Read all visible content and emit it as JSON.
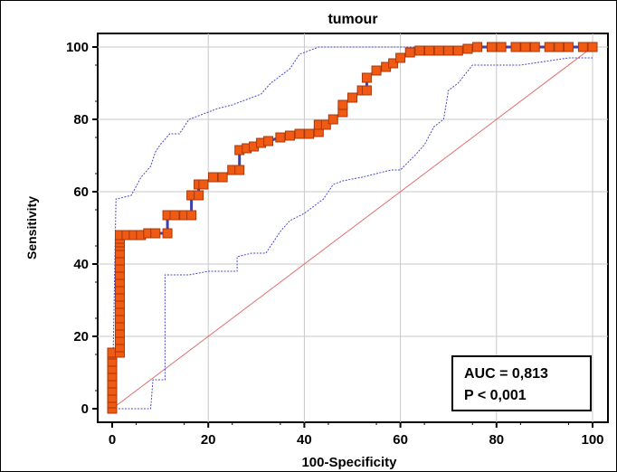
{
  "chart_data": {
    "type": "line",
    "title": "tumour",
    "xlabel": "100-Specificity",
    "ylabel": "Sensitivity",
    "xlim": [
      0,
      100
    ],
    "ylim": [
      0,
      100
    ],
    "x_ticks": [
      "0",
      "20",
      "40",
      "60",
      "80",
      "100"
    ],
    "y_ticks": [
      "0",
      "20",
      "40",
      "60",
      "80",
      "100"
    ],
    "grid": true,
    "annotation": {
      "auc": "AUC = 0,813",
      "p": "P < 0,001"
    },
    "colors": {
      "roc": "#3b3fb0",
      "marker_fill": "#f05a12",
      "marker_edge": "#a8380a",
      "ci": "#4a4acc",
      "reference": "#e07070",
      "grid": "#c8c8c8"
    },
    "series": [
      {
        "role": "roc",
        "x": [
          0,
          0,
          0,
          0,
          0,
          0,
          0,
          0,
          0,
          0,
          1.6,
          1.6,
          1.6,
          1.6,
          1.6,
          1.6,
          1.6,
          1.6,
          1.6,
          1.6,
          1.6,
          1.6,
          1.6,
          1.6,
          1.6,
          1.6,
          1.6,
          1.6,
          1.6,
          1.6,
          1.6,
          3,
          4.5,
          6,
          7.5,
          9,
          11.5,
          11.5,
          13,
          15,
          16.5,
          16.5,
          18,
          18,
          19,
          21,
          23,
          25,
          26.5,
          26.5,
          28,
          29.5,
          31,
          32.5,
          35,
          37,
          39,
          41,
          43,
          43,
          44.5,
          46,
          48,
          48,
          50,
          52,
          53,
          53,
          55,
          57,
          58.5,
          60,
          62,
          64,
          66,
          68,
          70,
          72,
          74,
          76,
          79,
          81,
          84,
          86,
          88,
          91,
          93,
          95,
          98,
          100
        ],
        "y": [
          0,
          1.5,
          3,
          5,
          7,
          9,
          11,
          13,
          15,
          15.5,
          15.5,
          17,
          19,
          21,
          23,
          25,
          27,
          29,
          31,
          33,
          35,
          37,
          39,
          41,
          43,
          45,
          46,
          47,
          48,
          48,
          48,
          48,
          48,
          48,
          48.5,
          48.5,
          48.5,
          53.5,
          53.5,
          53.5,
          53.5,
          59,
          59,
          62,
          62,
          64,
          64,
          66,
          66,
          71.5,
          72,
          72.5,
          73.5,
          74,
          75,
          75.5,
          76,
          76,
          76.5,
          78.5,
          78.5,
          80,
          82,
          84,
          86,
          88,
          88,
          91.5,
          93.5,
          94.5,
          95.5,
          97,
          98.5,
          99,
          99,
          99,
          99,
          99,
          99.5,
          100,
          100,
          100,
          100,
          100,
          100,
          100,
          100,
          100,
          100,
          100
        ]
      },
      {
        "role": "ci_upper",
        "x": [
          0,
          0.8,
          1,
          4,
          6,
          8,
          9,
          10,
          12,
          14,
          16,
          18,
          20,
          22,
          25,
          27,
          29,
          31,
          33,
          35,
          37,
          39,
          41,
          43,
          45,
          48,
          52,
          56,
          58,
          60,
          65,
          70,
          80,
          90,
          100
        ],
        "y": [
          0,
          58,
          58,
          59,
          64,
          67,
          71,
          73,
          76,
          76,
          80,
          81,
          82,
          83,
          84,
          85,
          86,
          87,
          90,
          92,
          94,
          98,
          99,
          100,
          100,
          100,
          100,
          100,
          100,
          100,
          100,
          100,
          100,
          100,
          100
        ]
      },
      {
        "role": "ci_lower",
        "x": [
          0,
          4,
          8,
          8.5,
          11,
          11,
          16,
          20,
          26,
          26,
          29,
          32,
          35,
          37,
          40,
          42,
          44,
          46,
          48,
          52,
          55,
          58,
          60,
          63,
          65,
          67,
          69,
          70,
          72,
          75,
          80,
          85,
          90,
          95,
          100
        ],
        "y": [
          0,
          0,
          0,
          8,
          8,
          37,
          37,
          38,
          38,
          42,
          43,
          43,
          49,
          52,
          54,
          56,
          58,
          62,
          63,
          64,
          65,
          66,
          66,
          70,
          73,
          78,
          80,
          88,
          90,
          95,
          95,
          95,
          96,
          97,
          97
        ]
      }
    ]
  }
}
